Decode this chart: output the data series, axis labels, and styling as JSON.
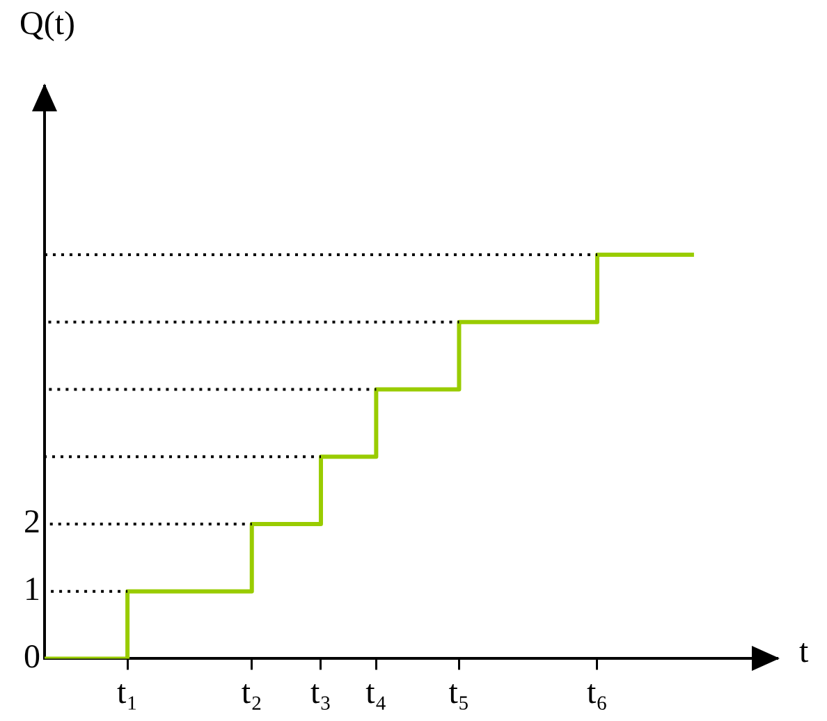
{
  "chart_data": {
    "type": "step",
    "xlabel": "t",
    "ylabel": "Q(t)",
    "marker": "none",
    "ylim": [
      0,
      8.5
    ],
    "yticks": [
      0,
      1,
      2
    ],
    "categories": [
      null,
      null,
      null,
      null,
      null,
      null,
      "t₁",
      null,
      null,
      null,
      null,
      null,
      null,
      null,
      null,
      "t₂",
      null,
      null,
      null,
      null,
      "t₃",
      null,
      null,
      null,
      "t₄",
      null,
      null,
      null,
      null,
      null,
      "t₅",
      null,
      null,
      null,
      null,
      null,
      null,
      null,
      null,
      null,
      "t₆",
      null,
      null,
      null,
      null,
      null,
      null,
      null,
      null,
      null,
      null,
      null,
      null,
      null
    ],
    "series": [
      {
        "type": "line",
        "line_style": "dotted",
        "color": "#000000",
        "values": [
          1,
          1,
          1,
          1,
          1,
          1,
          1,
          null,
          null,
          null,
          null,
          null,
          null,
          null,
          null,
          null,
          null,
          null,
          null,
          null,
          null,
          null,
          null,
          null,
          null,
          null,
          null,
          null,
          null,
          null,
          null,
          null,
          null,
          null,
          null,
          null,
          null,
          null,
          null,
          null,
          null,
          null,
          null,
          null,
          null,
          null,
          null,
          null,
          null,
          null,
          null,
          null,
          null,
          null
        ]
      },
      {
        "type": "line",
        "line_style": "dotted",
        "color": "#000000",
        "values": [
          2,
          2,
          2,
          2,
          2,
          2,
          2,
          2,
          2,
          2,
          2,
          2,
          2,
          2,
          2,
          2,
          null,
          null,
          null,
          null,
          null,
          null,
          null,
          null,
          null,
          null,
          null,
          null,
          null,
          null,
          null,
          null,
          null,
          null,
          null,
          null,
          null,
          null,
          null,
          null,
          null,
          null,
          null,
          null,
          null,
          null,
          null,
          null,
          null,
          null,
          null,
          null,
          null,
          null
        ]
      },
      {
        "type": "line",
        "line_style": "dotted",
        "color": "#000000",
        "values": [
          3,
          3,
          3,
          3,
          3,
          3,
          3,
          3,
          3,
          3,
          3,
          3,
          3,
          3,
          3,
          3,
          3,
          3,
          3,
          3,
          3,
          null,
          null,
          null,
          null,
          null,
          null,
          null,
          null,
          null,
          null,
          null,
          null,
          null,
          null,
          null,
          null,
          null,
          null,
          null,
          null,
          null,
          null,
          null,
          null,
          null,
          null,
          null,
          null,
          null,
          null,
          null,
          null,
          null
        ]
      },
      {
        "type": "line",
        "line_style": "dotted",
        "color": "#000000",
        "values": [
          4,
          4,
          4,
          4,
          4,
          4,
          4,
          4,
          4,
          4,
          4,
          4,
          4,
          4,
          4,
          4,
          4,
          4,
          4,
          4,
          4,
          4,
          4,
          4,
          4,
          null,
          null,
          null,
          null,
          null,
          null,
          null,
          null,
          null,
          null,
          null,
          null,
          null,
          null,
          null,
          null,
          null,
          null,
          null,
          null,
          null,
          null,
          null,
          null,
          null,
          null,
          null,
          null,
          null
        ]
      },
      {
        "type": "line",
        "line_style": "dotted",
        "color": "#000000",
        "values": [
          5,
          5,
          5,
          5,
          5,
          5,
          5,
          5,
          5,
          5,
          5,
          5,
          5,
          5,
          5,
          5,
          5,
          5,
          5,
          5,
          5,
          5,
          5,
          5,
          5,
          5,
          5,
          5,
          5,
          5,
          5,
          null,
          null,
          null,
          null,
          null,
          null,
          null,
          null,
          null,
          null,
          null,
          null,
          null,
          null,
          null,
          null,
          null,
          null,
          null,
          null,
          null,
          null,
          null
        ]
      },
      {
        "type": "line",
        "line_style": "dotted",
        "color": "#000000",
        "values": [
          6,
          6,
          6,
          6,
          6,
          6,
          6,
          6,
          6,
          6,
          6,
          6,
          6,
          6,
          6,
          6,
          6,
          6,
          6,
          6,
          6,
          6,
          6,
          6,
          6,
          6,
          6,
          6,
          6,
          6,
          6,
          6,
          6,
          6,
          6,
          6,
          6,
          6,
          6,
          6,
          6,
          null,
          null,
          null,
          null,
          null,
          null,
          null,
          null,
          null,
          null,
          null,
          null,
          null
        ]
      },
      {
        "line_style": "solid",
        "color": "#99cc00",
        "values": [
          0,
          0,
          0,
          0,
          0,
          0,
          1,
          1,
          1,
          1,
          1,
          1,
          1,
          1,
          1,
          2,
          2,
          2,
          2,
          2,
          3,
          3,
          3,
          3,
          4,
          4,
          4,
          4,
          4,
          4,
          5,
          5,
          5,
          5,
          5,
          5,
          5,
          5,
          5,
          5,
          6,
          6,
          6,
          6,
          6,
          6,
          6,
          6,
          null,
          null,
          null,
          null,
          null,
          null
        ]
      }
    ]
  }
}
